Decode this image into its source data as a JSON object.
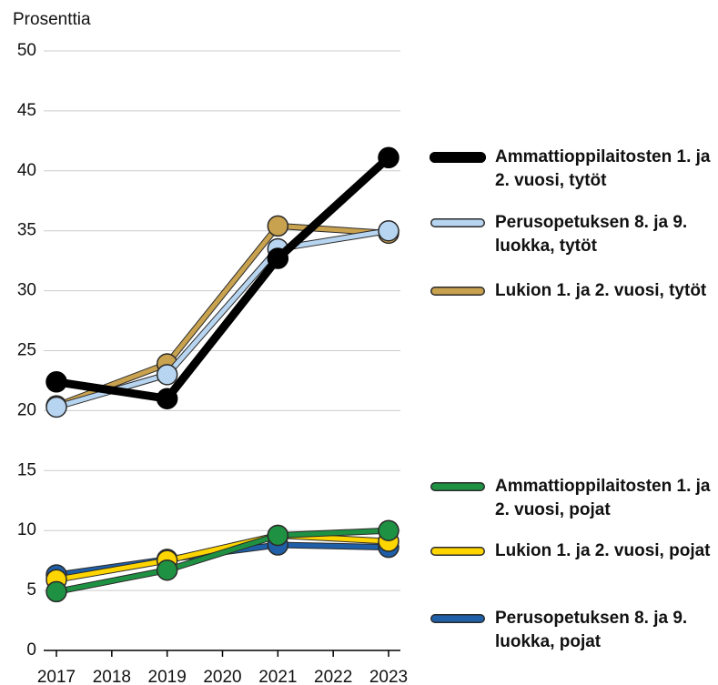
{
  "chart_data": {
    "type": "line",
    "y_label": "Prosenttia",
    "x": [
      2017,
      2019,
      2021,
      2023
    ],
    "xlim": [
      2017,
      2023
    ],
    "xticks": [
      2017,
      2018,
      2019,
      2020,
      2021,
      2022,
      2023
    ],
    "ylim": [
      0,
      50
    ],
    "yticks": [
      0,
      5,
      10,
      15,
      20,
      25,
      30,
      35,
      40,
      45,
      50
    ],
    "grid": true,
    "series": [
      {
        "name": "Ammattioppilaitosten 1. ja 2. vuosi, tytöt",
        "color": "#000000",
        "values": [
          22.4,
          21.0,
          32.7,
          41.1
        ]
      },
      {
        "name": "Perusopetuksen 8. ja 9. luokka, tytöt",
        "color": "#b7d5f0",
        "values": [
          20.3,
          23.0,
          33.5,
          35.0
        ]
      },
      {
        "name": "Lukion 1. ja 2. vuosi, tytöt",
        "color": "#c9a24f",
        "values": [
          20.4,
          23.9,
          35.4,
          34.8
        ]
      },
      {
        "name": "Ammattioppilaitosten 1. ja 2. vuosi, pojat",
        "color": "#1f9142",
        "values": [
          4.9,
          6.7,
          9.6,
          10.0
        ]
      },
      {
        "name": "Lukion 1. ja 2. vuosi, pojat",
        "color": "#ffd500",
        "values": [
          5.9,
          7.5,
          9.6,
          9.1
        ]
      },
      {
        "name": "Perusopetuksen 8. ja 9. luokka, pojat",
        "color": "#1f5fa8",
        "values": [
          6.3,
          7.6,
          8.8,
          8.6
        ]
      }
    ]
  }
}
